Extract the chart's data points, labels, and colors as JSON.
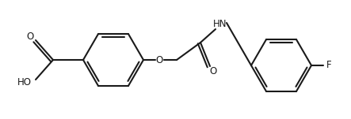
{
  "background_color": "#ffffff",
  "line_color": "#1a1a1a",
  "text_color": "#1a1a1a",
  "figsize": [
    4.43,
    1.51
  ],
  "dpi": 100,
  "bond_lw": 1.5,
  "font_size": 8.5,
  "labels": {
    "O1": "O",
    "O2": "O",
    "HN": "HN",
    "F": "F",
    "HO": "HO"
  }
}
